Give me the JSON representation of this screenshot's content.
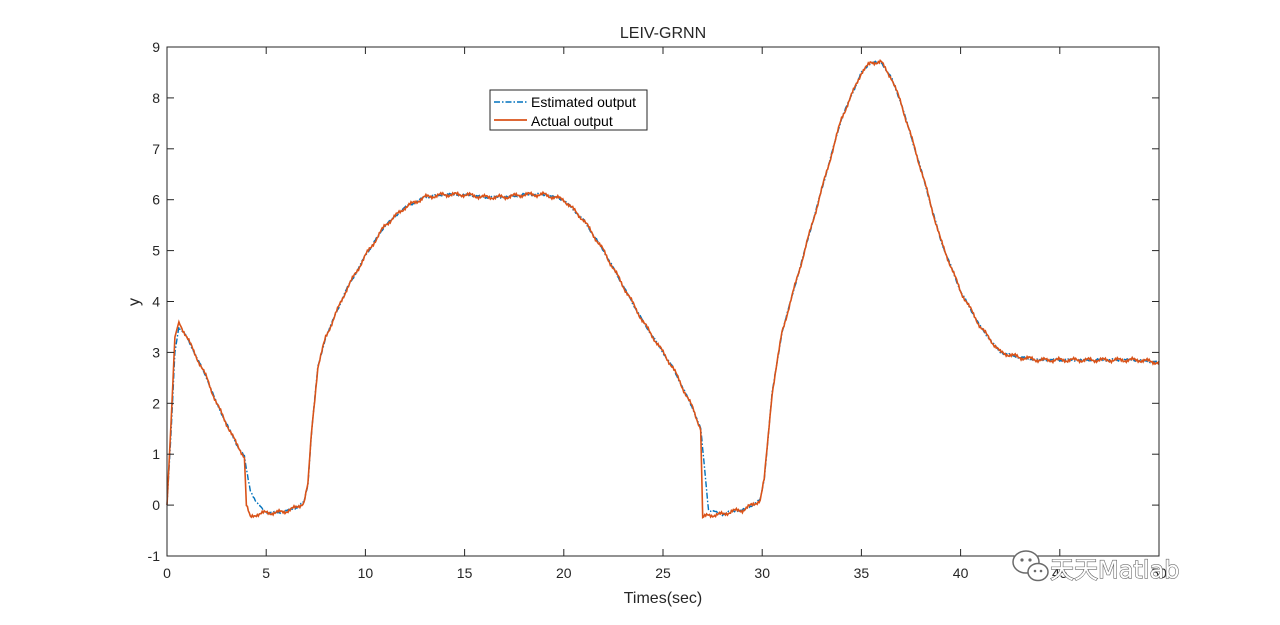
{
  "chart_data": {
    "type": "line",
    "title": "LEIV-GRNN",
    "xlabel": "Times(sec)",
    "ylabel": "y",
    "xlim": [
      0,
      50
    ],
    "ylim": [
      -1,
      9
    ],
    "x_ticks": [
      "0",
      "5",
      "10",
      "15",
      "20",
      "25",
      "30",
      "35",
      "40",
      "45",
      "50"
    ],
    "y_ticks": [
      "-1",
      "0",
      "1",
      "2",
      "3",
      "4",
      "5",
      "6",
      "7",
      "8",
      "9"
    ],
    "grid": false,
    "legend_position": "top-center",
    "x": [
      0,
      0.2,
      0.4,
      0.6,
      1,
      1.5,
      2,
      2.5,
      3,
      3.5,
      3.9,
      4,
      4.2,
      4.5,
      5,
      5.5,
      6,
      6.5,
      6.9,
      7.1,
      7.3,
      7.6,
      8,
      9,
      10,
      11,
      12,
      13,
      14,
      15,
      16,
      17,
      18,
      19,
      20,
      21,
      22,
      23,
      24,
      25,
      25.5,
      26,
      26.5,
      26.9,
      27,
      27.3,
      28,
      28.5,
      29,
      29.5,
      29.9,
      30.1,
      30.5,
      31,
      32,
      33,
      34,
      35,
      35.5,
      36,
      36.5,
      37,
      38,
      39,
      40,
      41,
      42,
      43,
      44,
      45,
      46,
      47,
      48,
      49,
      50
    ],
    "series": [
      {
        "name": "Estimated output",
        "color": "#0072BD",
        "style": "dashdot",
        "values": [
          0,
          1.4,
          3.0,
          3.5,
          3.3,
          2.9,
          2.5,
          2.0,
          1.6,
          1.2,
          0.95,
          0.7,
          0.3,
          0.05,
          -0.15,
          -0.15,
          -0.12,
          -0.05,
          0.05,
          0.4,
          1.5,
          2.7,
          3.3,
          4.2,
          4.9,
          5.5,
          5.85,
          6.05,
          6.1,
          6.1,
          6.05,
          6.05,
          6.1,
          6.1,
          6.0,
          5.6,
          5.0,
          4.3,
          3.6,
          3.0,
          2.7,
          2.3,
          1.9,
          1.5,
          1.1,
          -0.1,
          -0.18,
          -0.12,
          -0.1,
          0.0,
          0.1,
          0.5,
          2.2,
          3.4,
          4.8,
          6.2,
          7.6,
          8.5,
          8.7,
          8.7,
          8.4,
          7.9,
          6.6,
          5.2,
          4.2,
          3.5,
          3.0,
          2.9,
          2.85,
          2.85,
          2.85,
          2.85,
          2.85,
          2.85,
          2.8
        ]
      },
      {
        "name": "Actual output",
        "color": "#D95319",
        "style": "solid",
        "values": [
          0,
          1.6,
          3.3,
          3.6,
          3.3,
          2.9,
          2.5,
          2.0,
          1.6,
          1.2,
          0.95,
          0.0,
          -0.25,
          -0.18,
          -0.15,
          -0.15,
          -0.12,
          -0.05,
          0.05,
          0.4,
          1.5,
          2.7,
          3.3,
          4.2,
          4.9,
          5.5,
          5.85,
          6.05,
          6.1,
          6.1,
          6.05,
          6.05,
          6.1,
          6.1,
          6.0,
          5.6,
          5.0,
          4.3,
          3.6,
          3.0,
          2.7,
          2.3,
          1.9,
          1.5,
          -0.25,
          -0.2,
          -0.18,
          -0.12,
          -0.1,
          0.0,
          0.1,
          0.5,
          2.2,
          3.4,
          4.8,
          6.2,
          7.6,
          8.5,
          8.7,
          8.7,
          8.4,
          7.9,
          6.6,
          5.2,
          4.2,
          3.5,
          3.0,
          2.9,
          2.85,
          2.85,
          2.85,
          2.85,
          2.85,
          2.85,
          2.8
        ]
      }
    ]
  },
  "watermark": {
    "text": "天天Matlab",
    "icon": "wechat-icon"
  }
}
